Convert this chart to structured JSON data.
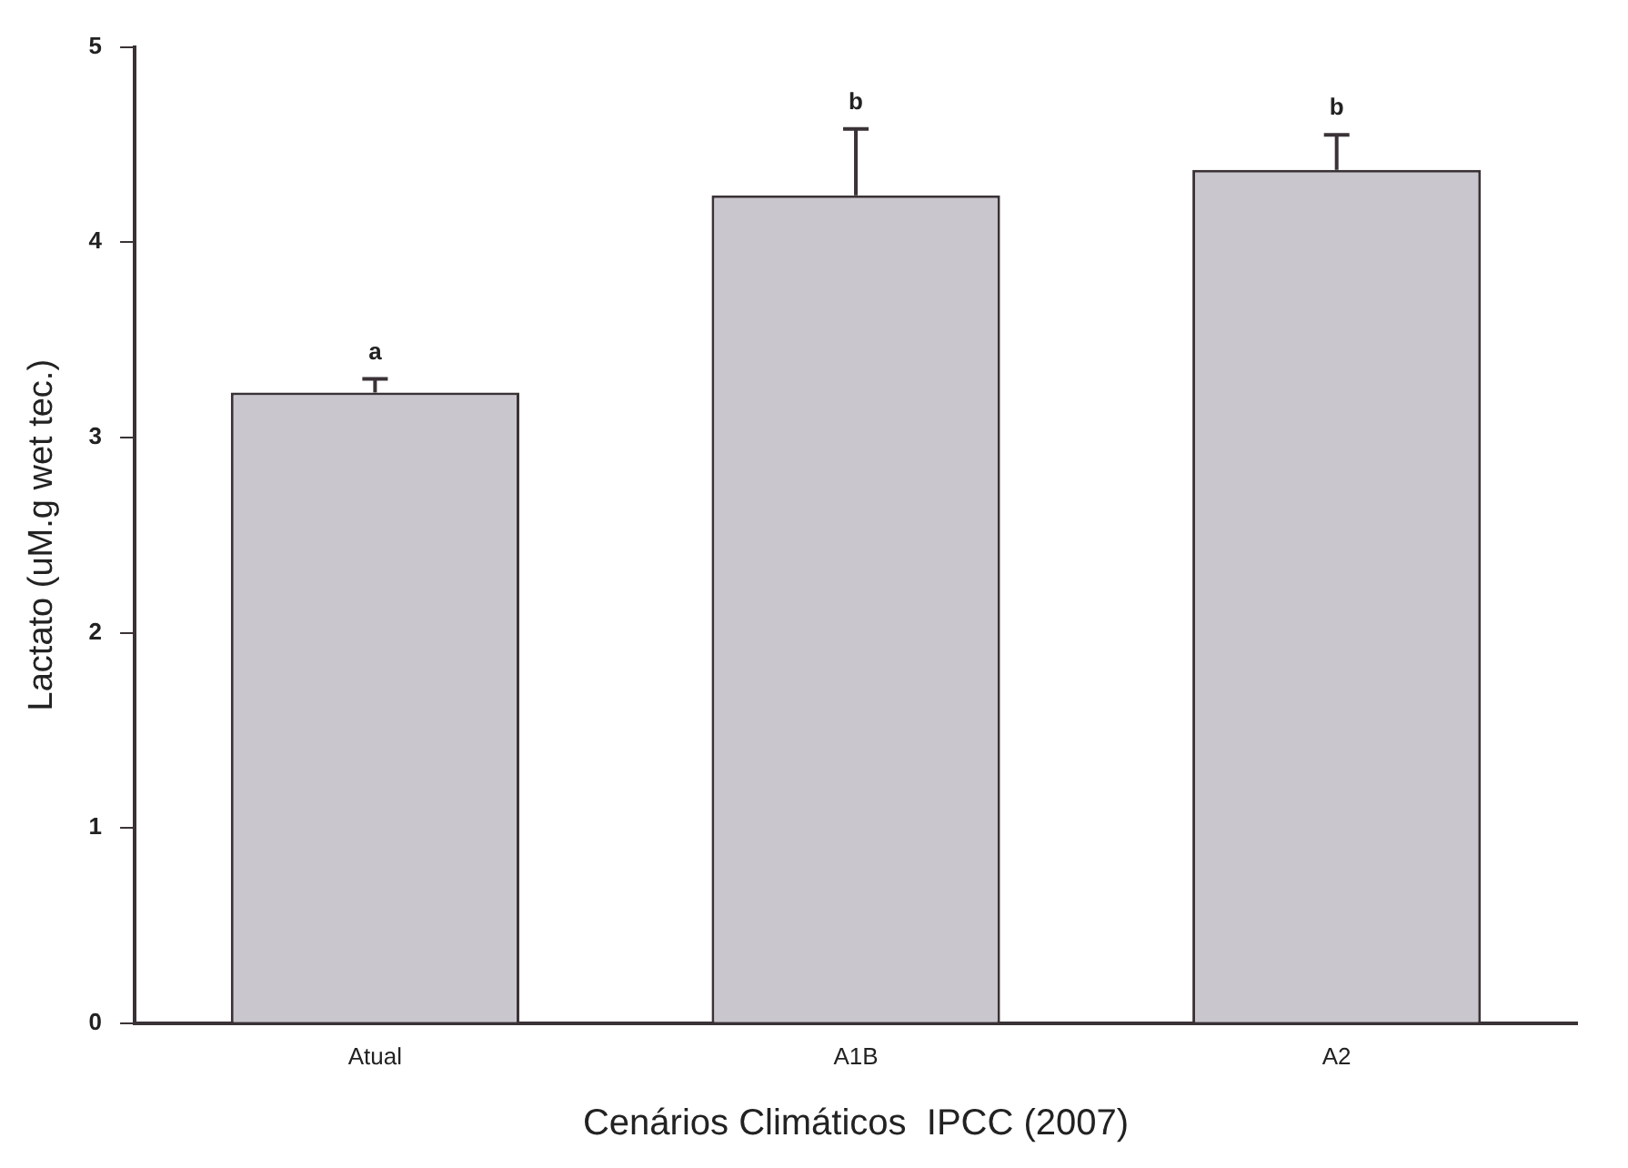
{
  "chart_data": {
    "type": "bar",
    "xlabel": "Cenários Climáticos  IPCC (2007)",
    "ylabel": "Lactato (uM.g wet tec.)",
    "categories": [
      "Atual",
      "A1B",
      "A2"
    ],
    "values": [
      3.23,
      4.24,
      4.37
    ],
    "errors": [
      [
        3.23,
        3.3
      ],
      [
        4.24,
        4.58
      ],
      [
        4.37,
        4.55
      ]
    ],
    "color": "#c9c7cd",
    "ylim": [
      0,
      5
    ],
    "yticks": [
      0,
      1,
      2,
      3,
      4,
      5
    ],
    "grid": false,
    "legend": false,
    "annotations": [
      "a",
      "b",
      "b"
    ]
  }
}
